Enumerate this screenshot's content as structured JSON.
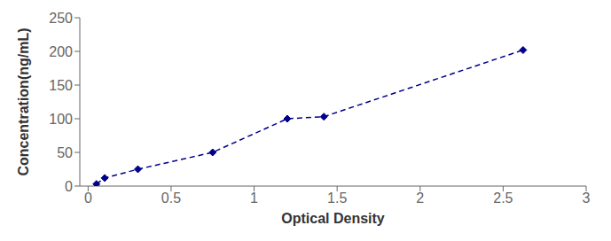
{
  "chart_data": {
    "type": "line",
    "x": [
      0.05,
      0.1,
      0.3,
      0.75,
      1.2,
      1.42,
      2.62
    ],
    "values": [
      3,
      12,
      25,
      50,
      100,
      103,
      202
    ],
    "color": "#00008B",
    "marker": "diamond",
    "line_style": "dashed",
    "xlabel": "Optical Density",
    "ylabel": "Concentration(ng/mL)",
    "xlim": [
      -0.05,
      3.0
    ],
    "ylim": [
      0,
      250
    ],
    "xticks": [
      0,
      0.5,
      1,
      1.5,
      2,
      2.5,
      3
    ],
    "yticks": [
      0,
      50,
      100,
      150,
      200,
      250
    ],
    "grid": false
  }
}
